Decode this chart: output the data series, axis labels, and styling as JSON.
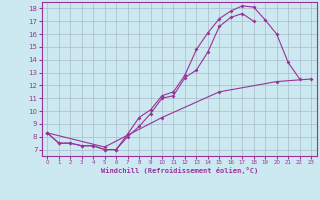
{
  "bg_color": "#cce8f0",
  "line_color": "#993399",
  "grid_color": "#aabbcc",
  "xlabel": "Windchill (Refroidissement éolien,°C)",
  "xlim": [
    -0.5,
    23.5
  ],
  "ylim": [
    6.5,
    18.5
  ],
  "xticks": [
    0,
    1,
    2,
    3,
    4,
    5,
    6,
    7,
    8,
    9,
    10,
    11,
    12,
    13,
    14,
    15,
    16,
    17,
    18,
    19,
    20,
    21,
    22,
    23
  ],
  "yticks": [
    7,
    8,
    9,
    10,
    11,
    12,
    13,
    14,
    15,
    16,
    17,
    18
  ],
  "line1_x": [
    0,
    1,
    2,
    3,
    4,
    5,
    6,
    7,
    8,
    9,
    10,
    11,
    12,
    13,
    14,
    15,
    16,
    17,
    18,
    19,
    20,
    21,
    22
  ],
  "line1_y": [
    8.3,
    7.5,
    7.5,
    7.3,
    7.3,
    7.0,
    7.0,
    8.2,
    9.5,
    10.1,
    11.2,
    11.5,
    12.8,
    14.8,
    16.1,
    17.2,
    17.8,
    18.2,
    18.1,
    17.1,
    16.0,
    13.8,
    12.5
  ],
  "line2_x": [
    0,
    1,
    2,
    3,
    4,
    5,
    6,
    7,
    8,
    9,
    10,
    11,
    12,
    13,
    14,
    15,
    16,
    17,
    18
  ],
  "line2_y": [
    8.3,
    7.5,
    7.5,
    7.3,
    7.3,
    7.0,
    7.0,
    8.0,
    8.8,
    9.8,
    11.0,
    11.2,
    12.6,
    13.2,
    14.6,
    16.6,
    17.3,
    17.6,
    17.0
  ],
  "line3_x": [
    0,
    5,
    10,
    15,
    20,
    23
  ],
  "line3_y": [
    8.3,
    7.2,
    9.5,
    11.5,
    12.3,
    12.5
  ]
}
